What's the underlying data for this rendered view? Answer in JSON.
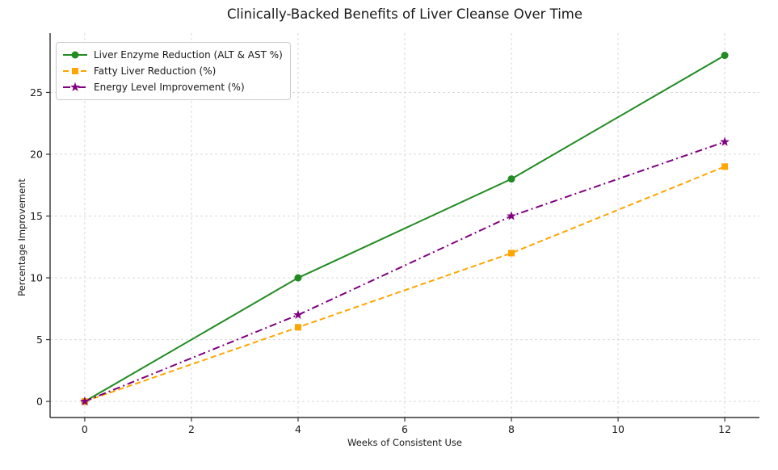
{
  "chart_data": {
    "type": "line",
    "title": "Clinically-Backed Benefits of Liver Cleanse Over Time",
    "xlabel": "Weeks of Consistent Use",
    "ylabel": "Percentage Improvement",
    "x": [
      0,
      4,
      8,
      12
    ],
    "series": [
      {
        "name": "Liver Enzyme Reduction (ALT & AST %)",
        "values": [
          0,
          10,
          18,
          28
        ],
        "color": "#228B22",
        "line_style": "solid",
        "marker": "circle"
      },
      {
        "name": "Fatty Liver Reduction (%)",
        "values": [
          0,
          6,
          12,
          19
        ],
        "color": "#FFA500",
        "line_style": "dashed",
        "marker": "square"
      },
      {
        "name": "Energy Level Improvement (%)",
        "values": [
          0,
          7,
          15,
          21
        ],
        "color": "#800080",
        "line_style": "dashdot",
        "marker": "star"
      }
    ],
    "x_ticks": [
      0,
      2,
      4,
      6,
      8,
      10,
      12
    ],
    "y_ticks": [
      0,
      5,
      10,
      15,
      20,
      25
    ],
    "xlim": [
      -0.65,
      12.65
    ],
    "ylim": [
      -1.3,
      29.8
    ],
    "grid": true,
    "grid_style": "dashed",
    "legend_position": "upper-left",
    "colors": {
      "grid": "#d9d9d9",
      "axis": "#333333",
      "text": "#1a1a1a",
      "background": "#ffffff"
    }
  }
}
